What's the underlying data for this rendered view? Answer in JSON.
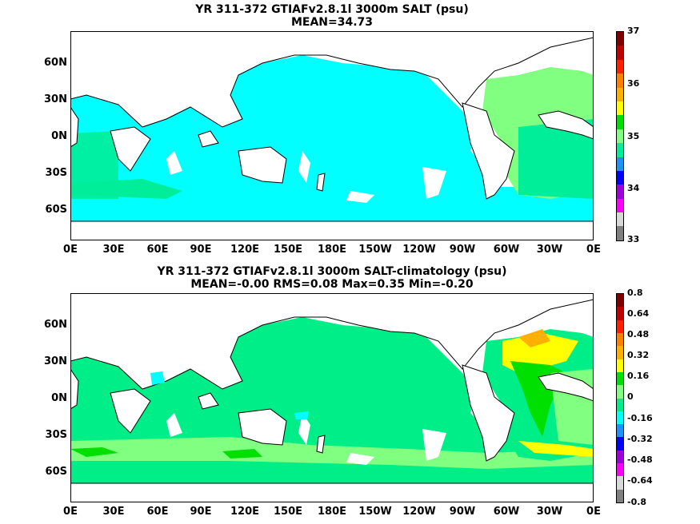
{
  "panels": [
    {
      "title_line1": "YR 311-372 GTIAFv2.8.1l 3000m SALT (psu)",
      "title_line2": "MEAN=34.73",
      "ocean_color": "#00FFFF",
      "colorbar": {
        "labels": [
          "37",
          "36",
          "35",
          "34",
          "33"
        ],
        "colors": [
          "#800000",
          "#C00000",
          "#FF2000",
          "#FF8000",
          "#FFB000",
          "#FFFF00",
          "#00E000",
          "#80FF80",
          "#00EE99",
          "#1E90FF",
          "#0000FF",
          "#A000E0",
          "#FF00FF",
          "#D8D8D8",
          "#808080"
        ]
      }
    },
    {
      "title_line1": "YR 311-372 GTIAFv2.8.1l 3000m SALT-climatology (psu)",
      "title_line2": "MEAN=-0.00   RMS=0.08   Max=0.35   Min=-0.20",
      "ocean_color": "#00EE88",
      "colorbar": {
        "labels": [
          "0.8",
          "0.64",
          "0.48",
          "0.32",
          "0.16",
          "0",
          "-0.16",
          "-0.32",
          "-0.48",
          "-0.64",
          "-0.8"
        ],
        "colors": [
          "#800000",
          "#C00000",
          "#FF2000",
          "#FF8000",
          "#FFB000",
          "#FFFF00",
          "#00E000",
          "#80FF80",
          "#00EE88",
          "#00FFFF",
          "#1E90FF",
          "#0000FF",
          "#A000E0",
          "#FF00FF",
          "#D8D8D8",
          "#808080"
        ]
      }
    }
  ],
  "lat_labels": [
    "60N",
    "30N",
    "0N",
    "30S",
    "60S"
  ],
  "lon_labels": [
    "0E",
    "30E",
    "60E",
    "90E",
    "120E",
    "150E",
    "180E",
    "150W",
    "120W",
    "90W",
    "60W",
    "30W",
    "0E"
  ]
}
